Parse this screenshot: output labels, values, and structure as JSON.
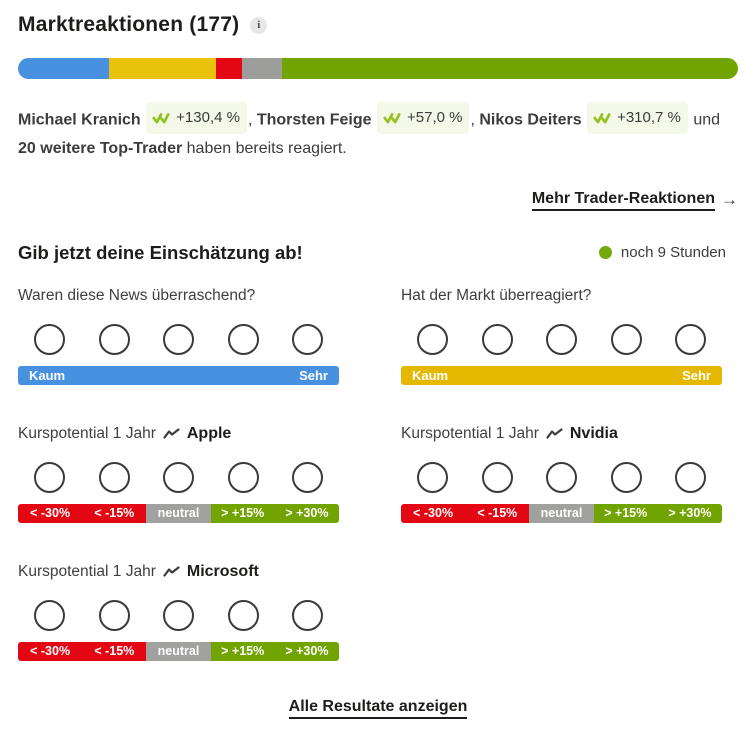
{
  "header": {
    "title": "Marktreaktionen (177)",
    "info_label": "i"
  },
  "progress_bar": {
    "segments": [
      {
        "name": "blue",
        "color": "#4791e0",
        "pct": 12.7
      },
      {
        "name": "yellow",
        "color": "#e8c20b",
        "pct": 14.8
      },
      {
        "name": "red",
        "color": "#e30613",
        "pct": 3.6
      },
      {
        "name": "gray",
        "color": "#9d9d9c",
        "pct": 5.6
      },
      {
        "name": "green",
        "color": "#72a400",
        "pct": 63.3
      }
    ]
  },
  "traders": {
    "line1": [
      {
        "name": "Michael Kranich",
        "perf": "+130,4 %"
      },
      {
        "name": "Thorsten Feige",
        "perf": "+57,0 %"
      },
      {
        "name": "Nikos Deiters",
        "perf": "+310,7 %"
      }
    ],
    "separator": ", ",
    "und": "und",
    "line2_bold": "20 weitere Top-Trader",
    "line2_rest": " haben bereits reagiert.",
    "badge_bg": "#f3f8e8",
    "logo_color": "#95c11f"
  },
  "more_link": {
    "label": "Mehr Trader-Reaktionen",
    "arrow": "→"
  },
  "survey": {
    "heading": "Gib jetzt deine Einschätzung ab!",
    "time_left": "noch 9 Stunden",
    "dot_color": "#74a80b"
  },
  "questions": [
    {
      "label": "Waren diese News überraschend?",
      "type": "scale",
      "bar_color": "#4791e0",
      "left_label": "Kaum",
      "right_label": "Sehr"
    },
    {
      "label": "Hat der Markt überreagiert?",
      "type": "scale",
      "bar_color": "#e5b800",
      "left_label": "Kaum",
      "right_label": "Sehr"
    },
    {
      "label": "Kurspotential 1 Jahr",
      "stock": "Apple",
      "type": "segments"
    },
    {
      "label": "Kurspotential 1 Jahr",
      "stock": "Nvidia",
      "type": "segments"
    },
    {
      "label": "Kurspotential 1 Jahr",
      "stock": "Microsoft",
      "type": "segments"
    }
  ],
  "segment_scale": {
    "segments": [
      {
        "label": "< -30%",
        "color": "#e30613"
      },
      {
        "label": "< -15%",
        "color": "#e30613"
      },
      {
        "label": "neutral",
        "color": "#a1a1a0"
      },
      {
        "label": "> +15%",
        "color": "#72a400"
      },
      {
        "label": "> +30%",
        "color": "#72a400"
      }
    ]
  },
  "footer_link": {
    "label": "Alle Resultate anzeigen"
  }
}
